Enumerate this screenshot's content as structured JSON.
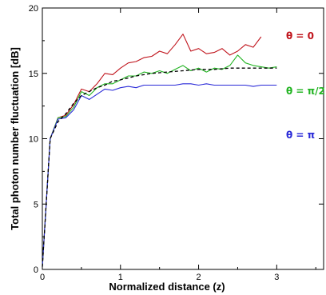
{
  "chart_data": {
    "type": "line",
    "title": "",
    "xlabel": "Normalized distance (z)",
    "ylabel": "Total photon number fluctuation [dB]",
    "xlim": [
      0,
      3.6
    ],
    "ylim": [
      0,
      20
    ],
    "xticks": [
      "0",
      "1",
      "2",
      "3"
    ],
    "yticks": [
      "0",
      "5",
      "10",
      "15",
      "20"
    ],
    "grid": false,
    "legend": "inline-right",
    "series": [
      {
        "name": "θ = 0",
        "color": "#c0141c",
        "style": "solid",
        "x": [
          0,
          0.1,
          0.2,
          0.3,
          0.4,
          0.5,
          0.6,
          0.7,
          0.8,
          0.9,
          1.0,
          1.1,
          1.2,
          1.3,
          1.4,
          1.5,
          1.6,
          1.7,
          1.8,
          1.9,
          2.0,
          2.1,
          2.2,
          2.3,
          2.4,
          2.5,
          2.6,
          2.7,
          2.8
        ],
        "y": [
          0.2,
          10.0,
          11.6,
          11.8,
          12.6,
          13.8,
          13.6,
          14.2,
          15.0,
          14.9,
          15.4,
          15.8,
          15.9,
          16.2,
          16.3,
          16.7,
          16.5,
          17.2,
          18.0,
          16.7,
          16.9,
          16.5,
          16.6,
          16.9,
          16.4,
          16.7,
          17.2,
          17.0,
          17.8
        ]
      },
      {
        "name": "θ = π/2",
        "color": "#22b422",
        "style": "solid",
        "x": [
          0,
          0.1,
          0.2,
          0.3,
          0.4,
          0.5,
          0.6,
          0.7,
          0.8,
          0.9,
          1.0,
          1.1,
          1.2,
          1.3,
          1.4,
          1.5,
          1.6,
          1.7,
          1.8,
          1.9,
          2.0,
          2.1,
          2.2,
          2.3,
          2.4,
          2.5,
          2.6,
          2.7,
          2.8,
          2.9,
          3.0
        ],
        "y": [
          0.2,
          10.0,
          11.6,
          11.7,
          12.4,
          13.6,
          13.3,
          13.9,
          14.2,
          14.2,
          14.5,
          14.8,
          14.8,
          15.1,
          15.0,
          15.2,
          15.0,
          15.3,
          15.6,
          15.2,
          15.4,
          15.1,
          15.4,
          15.3,
          15.6,
          16.4,
          15.8,
          15.6,
          15.5,
          15.4,
          15.5
        ]
      },
      {
        "name": "θ = π",
        "color": "#2a2ad8",
        "style": "solid",
        "x": [
          0,
          0.1,
          0.2,
          0.3,
          0.4,
          0.5,
          0.6,
          0.7,
          0.8,
          0.9,
          1.0,
          1.1,
          1.2,
          1.3,
          1.4,
          1.5,
          1.6,
          1.7,
          1.8,
          1.9,
          2.0,
          2.1,
          2.2,
          2.3,
          2.4,
          2.5,
          2.6,
          2.7,
          2.8,
          2.9,
          3.0
        ],
        "y": [
          0.2,
          10.0,
          11.5,
          11.6,
          12.2,
          13.3,
          13.0,
          13.4,
          13.8,
          13.7,
          13.9,
          14.0,
          13.9,
          14.1,
          14.1,
          14.1,
          14.1,
          14.1,
          14.2,
          14.2,
          14.1,
          14.2,
          14.1,
          14.1,
          14.1,
          14.1,
          14.1,
          14.0,
          14.1,
          14.1,
          14.1
        ]
      },
      {
        "color": "#000000",
        "style": "dashed",
        "x": [
          0,
          0.1,
          0.2,
          0.3,
          0.4,
          0.5,
          0.6,
          0.7,
          0.8,
          0.9,
          1.0,
          1.2,
          1.4,
          1.6,
          1.8,
          2.0,
          2.2,
          2.4,
          2.6,
          2.8,
          3.0
        ],
        "y": [
          0.2,
          10.0,
          11.3,
          11.9,
          12.7,
          13.3,
          13.6,
          13.9,
          14.1,
          14.4,
          14.5,
          14.8,
          15.0,
          15.1,
          15.2,
          15.3,
          15.3,
          15.4,
          15.4,
          15.4,
          15.4
        ]
      }
    ]
  }
}
